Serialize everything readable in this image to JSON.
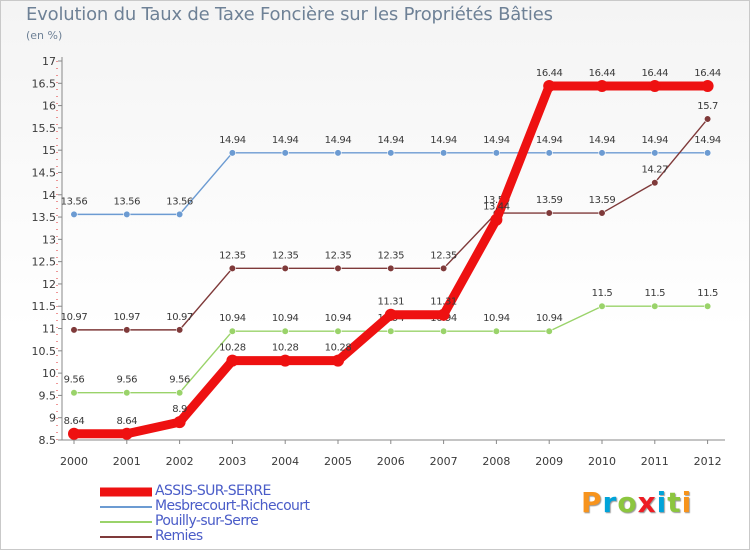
{
  "title": "Evolution du Taux de Taxe Foncière sur les Propriétés Bâties",
  "subtitle": "(en %)",
  "brand": {
    "text": "Proxiti",
    "letters": [
      "P",
      "r",
      "o",
      "x",
      "i",
      "t",
      "i"
    ],
    "colors": [
      "#f7941d",
      "#00a3d9",
      "#8cc63f",
      "#ed1c24",
      "#00a3d9",
      "#8cc63f",
      "#f7941d"
    ]
  },
  "chart_data": {
    "type": "line",
    "title": "Evolution du Taux de Taxe Foncière sur les Propriétés Bâties",
    "ylabel": "(en %)",
    "xlabel": "",
    "x": [
      "2000",
      "2001",
      "2002",
      "2003",
      "2004",
      "2005",
      "2006",
      "2007",
      "2008",
      "2009",
      "2010",
      "2011",
      "2012"
    ],
    "ylim": [
      8.5,
      17
    ],
    "yticks": [
      8.5,
      9,
      9.5,
      10,
      10.5,
      11,
      11.5,
      12,
      12.5,
      13,
      13.5,
      14,
      14.5,
      15,
      15.5,
      16,
      16.5,
      17
    ],
    "grid": false,
    "legend_position": "bottom-left",
    "series": [
      {
        "name": "Mesbrecourt-Richecourt",
        "color": "#6c9bd2",
        "values": [
          13.56,
          13.56,
          13.56,
          14.94,
          14.94,
          14.94,
          14.94,
          14.94,
          14.94,
          14.94,
          14.94,
          14.94,
          14.94
        ],
        "labels": [
          "13.56",
          "13.56",
          "13.56",
          "14.94",
          "14.94",
          "14.94",
          "14.94",
          "14.94",
          "14.94",
          "14.94",
          "14.94",
          "14.94",
          "14.94"
        ]
      },
      {
        "name": "Pouilly-sur-Serre",
        "color": "#9ad36a",
        "values": [
          9.56,
          9.56,
          9.56,
          10.94,
          10.94,
          10.94,
          10.94,
          10.94,
          10.94,
          10.94,
          11.5,
          11.5,
          11.5
        ],
        "labels": [
          "9.56",
          "9.56",
          "9.56",
          "10.94",
          "10.94",
          "10.94",
          "10.94",
          "10.94",
          "10.94",
          "10.94",
          "11.5",
          "11.5",
          "11.5"
        ]
      },
      {
        "name": "Remies",
        "color": "#7f3a3a",
        "values": [
          10.97,
          10.97,
          10.97,
          12.35,
          12.35,
          12.35,
          12.35,
          12.35,
          13.59,
          13.59,
          13.59,
          14.27,
          15.7
        ],
        "labels": [
          "10.97",
          "10.97",
          "10.97",
          "12.35",
          "12.35",
          "12.35",
          "12.35",
          "12.35",
          "13.59",
          "13.59",
          "13.59",
          "14.27",
          "15.7"
        ]
      },
      {
        "name": "ASSIS-SUR-SERRE",
        "color": "#ee1111",
        "values": [
          8.64,
          8.64,
          8.9,
          10.28,
          10.28,
          10.28,
          11.31,
          11.31,
          13.44,
          16.44,
          16.44,
          16.44,
          16.44
        ],
        "labels": [
          "8.64",
          "8.64",
          "8.9",
          "10.28",
          "10.28",
          "10.28",
          "11.31",
          "11.31",
          "13.44",
          "16.44",
          "16.44",
          "16.44",
          "16.44"
        ]
      }
    ],
    "legend_order": [
      "ASSIS-SUR-SERRE",
      "Mesbrecourt-Richecourt",
      "Pouilly-sur-Serre",
      "Remies"
    ]
  }
}
